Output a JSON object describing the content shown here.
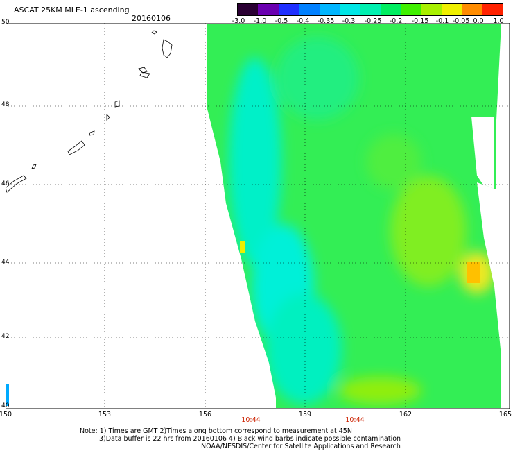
{
  "header": {
    "title": "ASCAT 25KM MLE-1 ascending",
    "date": "20160106"
  },
  "colorbar": {
    "labels": [
      "-3.0",
      "-1.0",
      "-0.5",
      "-0.4",
      "-0.35",
      "-0.3",
      "-0.25",
      "-0.2",
      "-0.15",
      "-0.1",
      "-0.05",
      "0.0",
      "1.0"
    ],
    "colors": [
      "#2a0033",
      "#6a00b0",
      "#1f2fff",
      "#0080ff",
      "#00b5ff",
      "#00e6e6",
      "#00f0b0",
      "#00ee60",
      "#40f000",
      "#a8f000",
      "#f0f000",
      "#ff8c00",
      "#ff2200"
    ]
  },
  "map": {
    "lat_labels": [
      "50",
      "48",
      "46",
      "44",
      "42",
      "40"
    ],
    "lon_labels": [
      "150",
      "153",
      "156",
      "159",
      "162",
      "165"
    ],
    "time_labels": [
      "10:44",
      "10:44"
    ]
  },
  "notes": {
    "line1": "Note: 1) Times are GMT 2)Times along bottom correspond to measurement at 45N",
    "line2": "3)Data buffer is 22 hrs from 20160106 4) Black wind barbs indicate possible contamination",
    "line3": "NOAA/NESDIS/Center for Satellite Applications and Research"
  }
}
